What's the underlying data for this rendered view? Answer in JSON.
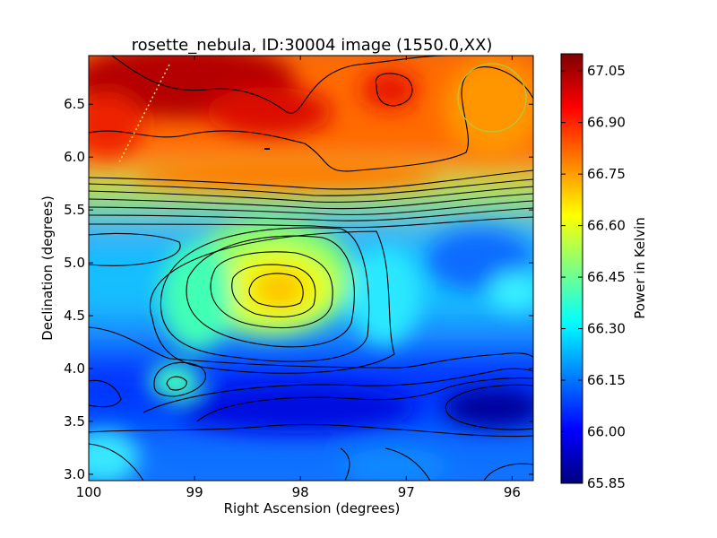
{
  "chart_data": {
    "type": "heatmap",
    "title": "rosette_nebula, ID:30004 image (1550.0,XX)",
    "xlabel": "Right Ascension (degrees)",
    "ylabel": "Declination (degrees)",
    "xlim": [
      100.0,
      95.8
    ],
    "ylim": [
      2.94,
      6.96
    ],
    "x_ticks": [
      "100",
      "99",
      "98",
      "97",
      "96"
    ],
    "x_tick_values": [
      100,
      99,
      98,
      97,
      96
    ],
    "y_ticks": [
      "3.0",
      "3.5",
      "4.0",
      "4.5",
      "5.0",
      "5.5",
      "6.0",
      "6.5"
    ],
    "y_tick_values": [
      3.0,
      3.5,
      4.0,
      4.5,
      5.0,
      5.5,
      6.0,
      6.5
    ],
    "colormap": "jet",
    "colorbar": {
      "label": "Power in Kelvin",
      "min": 65.85,
      "max": 67.1,
      "tick_labels": [
        "67.05",
        "66.90",
        "66.75",
        "66.60",
        "66.45",
        "66.30",
        "66.15",
        "66.00",
        "65.85"
      ],
      "tick_values": [
        67.05,
        66.9,
        66.75,
        66.6,
        66.45,
        66.3,
        66.15,
        66.0,
        65.85
      ]
    },
    "approx_field_features": [
      {
        "ra": 99.2,
        "dec": 6.75,
        "value": 67.07
      },
      {
        "ra": 98.4,
        "dec": 6.55,
        "value": 66.95
      },
      {
        "ra": 97.1,
        "dec": 6.68,
        "value": 66.92
      },
      {
        "ra": 96.3,
        "dec": 6.5,
        "value": 66.78
      },
      {
        "ra": 97.3,
        "dec": 6.05,
        "value": 66.82
      },
      {
        "ra": 98.25,
        "dec": 4.8,
        "value": 66.62
      },
      {
        "ra": 99.3,
        "dec": 3.85,
        "value": 66.33
      },
      {
        "ra": 96.4,
        "dec": 5.15,
        "value": 66.12
      },
      {
        "ra": 95.95,
        "dec": 4.6,
        "value": 66.3
      },
      {
        "ra": 96.0,
        "dec": 3.55,
        "value": 65.86
      },
      {
        "ra": 98.5,
        "dec": 3.55,
        "value": 66.03
      },
      {
        "ra": 99.9,
        "dec": 3.0,
        "value": 66.35
      }
    ],
    "overlays": [
      {
        "kind": "dotted-line",
        "color": "#cccc33",
        "points": [
          [
            99.3,
            6.92
          ],
          [
            99.75,
            6.0
          ]
        ]
      },
      {
        "kind": "circle",
        "color": "#a0cc40",
        "center": [
          96.2,
          6.6
        ],
        "radius_deg": 0.33
      }
    ],
    "contour_count": 14
  }
}
